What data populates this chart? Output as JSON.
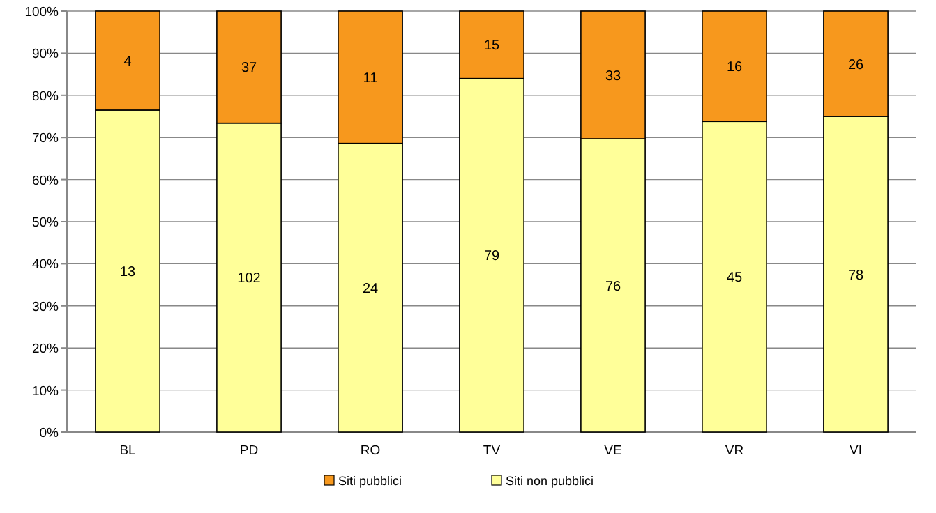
{
  "chart_data": {
    "type": "bar",
    "stacked": true,
    "categories": [
      "BL",
      "PD",
      "RO",
      "TV",
      "VE",
      "VR",
      "VI"
    ],
    "series": [
      {
        "name": "Siti non pubblici",
        "color": "#ffff99",
        "values": [
          76.5,
          73.4,
          68.6,
          84.0,
          69.7,
          73.8,
          75.0
        ]
      },
      {
        "name": "Siti pubblici",
        "color": "#f7981d",
        "values": [
          23.5,
          26.6,
          31.4,
          16.0,
          30.3,
          26.2,
          25.0
        ]
      }
    ],
    "annotations": [
      "13",
      "102",
      "24",
      "79",
      "76",
      "45",
      "78",
      "4",
      "37",
      "11",
      "15",
      "33",
      "16",
      "26"
    ],
    "ylim": [
      0,
      100
    ],
    "yticks": [
      {
        "value": 0,
        "label": "0%"
      },
      {
        "value": 10,
        "label": "10%"
      },
      {
        "value": 20,
        "label": "20%"
      },
      {
        "value": 30,
        "label": "30%"
      },
      {
        "value": 40,
        "label": "40%"
      },
      {
        "value": 50,
        "label": "50%"
      },
      {
        "value": 60,
        "label": "60%"
      },
      {
        "value": 70,
        "label": "70%"
      },
      {
        "value": 80,
        "label": "80%"
      },
      {
        "value": 90,
        "label": "90%"
      },
      {
        "value": 100,
        "label": "100%"
      }
    ],
    "grid": "y",
    "legend": "bottom"
  }
}
